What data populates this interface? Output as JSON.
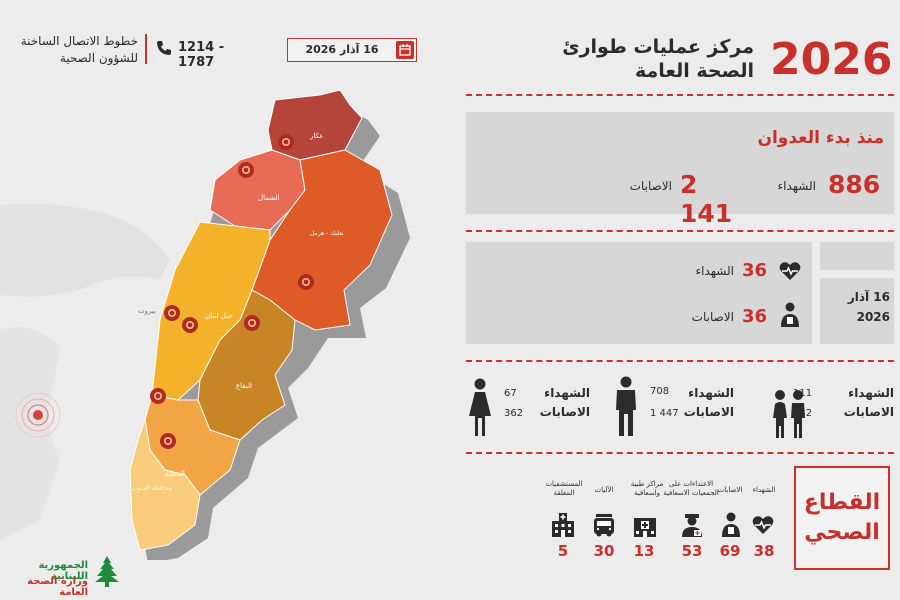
{
  "header": {
    "year": "2026",
    "title_line1": "مركز عمليات طوارئ",
    "title_line2": "الصحة العامة",
    "date": "16 آذار 2026",
    "phone": "1214 - 1787",
    "hotline_line1": "خطوط الاتصال الساخنة",
    "hotline_line2": "للشؤون الصحية"
  },
  "since_start": {
    "title": "منذ بدء العدوان",
    "deaths_value": "886",
    "deaths_label": "الشهداء",
    "injuries_value": "2 141",
    "injuries_label": "الاصابات"
  },
  "daily": {
    "deaths_value": "36",
    "deaths_label": "الشهداء",
    "injuries_value": "36",
    "injuries_label": "الاصابات",
    "date_line1": "16 آذار",
    "date_line2": "2026"
  },
  "demographics": [
    {
      "group": "children",
      "deaths_label": "الشهداء",
      "deaths": "111",
      "injuries_label": "الاصابات",
      "injuries": "332"
    },
    {
      "group": "men",
      "deaths_label": "الشهداء",
      "deaths": "708",
      "injuries_label": "الاصابات",
      "injuries": "1 447"
    },
    {
      "group": "women",
      "deaths_label": "الشهداء",
      "deaths": "67",
      "injuries_label": "الاصابات",
      "injuries": "362"
    }
  ],
  "health_sector": {
    "title_line1": "القطاع",
    "title_line2": "الصحي",
    "items": [
      {
        "label": "الشهداء",
        "value": "38"
      },
      {
        "label": "الاصابات",
        "value": "69"
      },
      {
        "label": "الاعتداءات على الجمعيات الاسعافية",
        "value": "53"
      },
      {
        "label": "مراكز طبية واسعافية",
        "value": "13"
      },
      {
        "label": "الآليات",
        "value": "30"
      },
      {
        "label": "المستشفيات المغلقة",
        "value": "5"
      }
    ]
  },
  "map": {
    "regions": {
      "akkar": "عكار",
      "north": "الشمال",
      "baalbek": "بعلبك - هرمل",
      "mount_lebanon": "جبل لبنان",
      "beirut": "بيروت",
      "bekaa": "البقاع",
      "nabatieh": "النبطية",
      "south": "محافظة الجنوب"
    }
  },
  "footer": {
    "line1": "الجمهورية اللبنانية",
    "line2": "وزارة الصحة العامة"
  },
  "colors": {
    "accent": "#c9302c",
    "akkar": "#b5453a",
    "north": "#e86b55",
    "baalbek": "#de5a26",
    "mount_lebanon": "#f4b22a",
    "bekaa": "#c88525",
    "nabatieh": "#f2a545",
    "south": "#f8cc7a"
  }
}
